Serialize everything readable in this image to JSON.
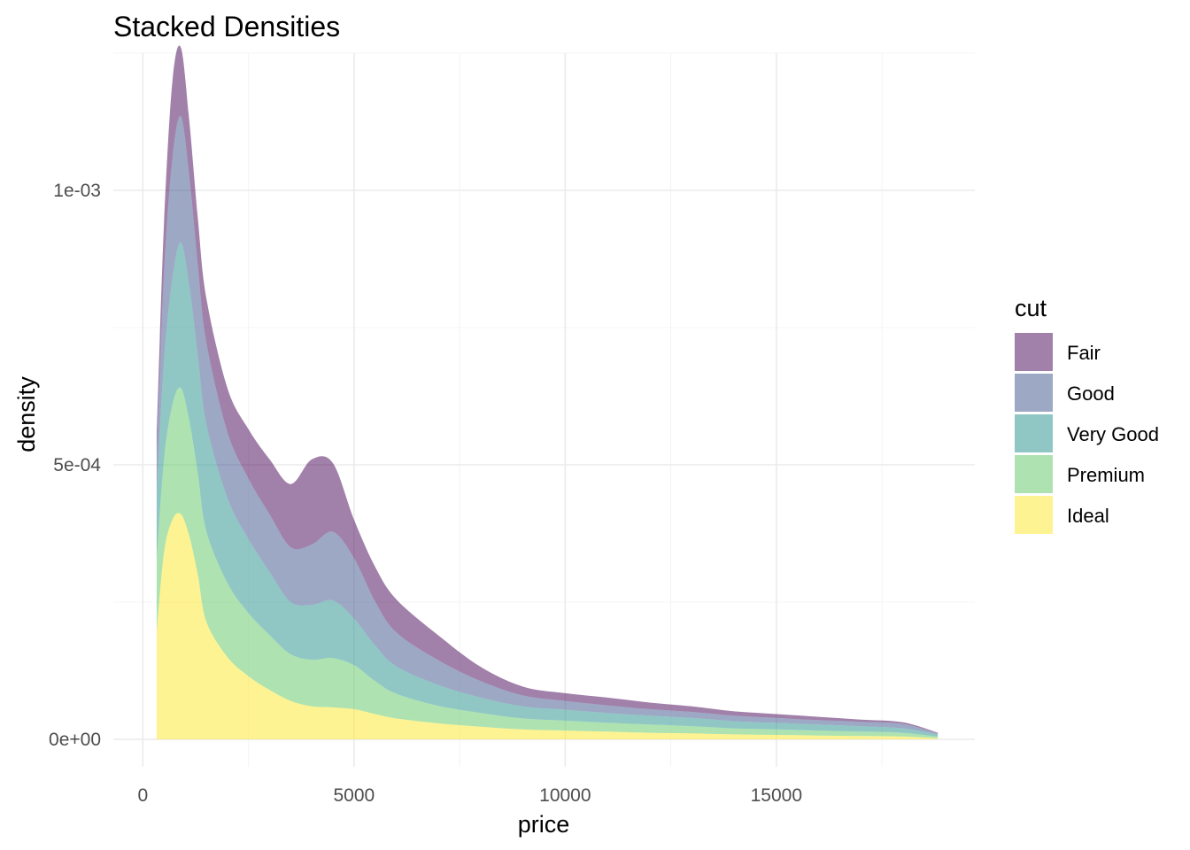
{
  "chart_data": {
    "type": "area",
    "stacked": true,
    "title": "Stacked Densities",
    "xlabel": "price",
    "ylabel": "density",
    "xlim": [
      -700,
      19700
    ],
    "ylim": [
      -5e-05,
      0.00125
    ],
    "x_ticks": [
      0,
      5000,
      10000,
      15000
    ],
    "x_tick_labels": [
      "0",
      "5000",
      "10000",
      "15000"
    ],
    "y_ticks": [
      0,
      0.0005,
      0.001
    ],
    "y_tick_labels": [
      "0e+00",
      "5e-04",
      "1e-03"
    ],
    "grid": true,
    "legend": {
      "title": "cut",
      "position": "right"
    },
    "x": [
      326,
      500,
      700,
      900,
      1100,
      1300,
      1500,
      2000,
      2500,
      3000,
      3500,
      4000,
      4500,
      5000,
      5500,
      6000,
      7000,
      8000,
      9000,
      10000,
      11000,
      12000,
      13000,
      14000,
      15000,
      16000,
      17000,
      18000,
      18823
    ],
    "series": [
      {
        "name": "Ideal",
        "color": "#FDE725",
        "values": [
          0.000195,
          0.00034,
          0.0004,
          0.00041,
          0.00037,
          0.0003,
          0.000215,
          0.00015,
          0.000115,
          9e-05,
          7e-05,
          6e-05,
          5.8e-05,
          5.5e-05,
          4.6e-05,
          3.8e-05,
          2.9e-05,
          2.3e-05,
          1.8e-05,
          1.6e-05,
          1.4e-05,
          1.2e-05,
          1.1e-05,
          9e-06,
          8e-06,
          7e-06,
          6e-06,
          5e-06,
          2e-06
        ]
      },
      {
        "name": "Premium",
        "color": "#5DC863",
        "values": [
          0.00013,
          0.00017,
          0.00021,
          0.00023,
          0.00021,
          0.000185,
          0.000165,
          0.000135,
          0.000115,
          0.0001,
          8.5e-05,
          8.5e-05,
          9e-05,
          8e-05,
          6e-05,
          4.5e-05,
          3.2e-05,
          2.5e-05,
          2e-05,
          1.8e-05,
          1.6e-05,
          1.5e-05,
          1.3e-05,
          1.1e-05,
          1e-05,
          9e-06,
          8e-06,
          7e-06,
          3e-06
        ]
      },
      {
        "name": "Very Good",
        "color": "#21908C",
        "values": [
          0.00012,
          0.00018,
          0.00023,
          0.000265,
          0.000245,
          0.000215,
          0.000195,
          0.000155,
          0.000135,
          0.000115,
          9.5e-05,
          0.0001,
          0.000105,
          8.5e-05,
          6.5e-05,
          5e-05,
          3.8e-05,
          2.8e-05,
          2.2e-05,
          2e-05,
          1.8e-05,
          1.6e-05,
          1.5e-05,
          1.3e-05,
          1.2e-05,
          1.1e-05,
          1e-05,
          8e-06,
          4e-06
        ]
      },
      {
        "name": "Good",
        "color": "#3B528B",
        "values": [
          7e-05,
          0.00016,
          0.00022,
          0.00023,
          0.0002,
          0.000165,
          0.00015,
          0.00012,
          0.00011,
          0.000105,
          0.0001,
          0.00011,
          0.000125,
          0.00011,
          8e-05,
          6.2e-05,
          4.5e-05,
          3e-05,
          2e-05,
          1.6e-05,
          1.4e-05,
          1.2e-05,
          1.1e-05,
          1e-05,
          9e-06,
          8e-06,
          8e-06,
          8e-06,
          2e-06
        ]
      },
      {
        "name": "Fair",
        "color": "#440154",
        "values": [
          4e-05,
          9e-05,
          0.00014,
          0.000125,
          0.0001,
          8.5e-05,
          8e-05,
          8e-05,
          9e-05,
          0.0001,
          0.000115,
          0.000155,
          0.000125,
          7e-05,
          6.3e-05,
          6e-05,
          4.5e-05,
          2.6e-05,
          1.6e-05,
          1.4e-05,
          1.4e-05,
          1.2e-05,
          1e-05,
          8e-06,
          7e-06,
          6e-06,
          4e-06,
          3e-06,
          1e-06
        ]
      }
    ]
  }
}
